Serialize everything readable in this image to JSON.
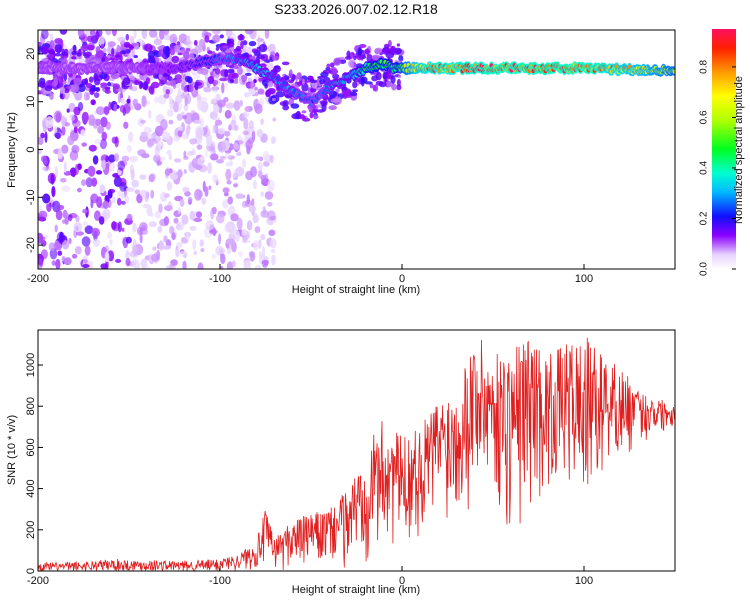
{
  "title": "S233.2026.007.02.12.R18",
  "chart_data": [
    {
      "type": "heatmap",
      "name": "spectrogram",
      "xlabel": "Height of straight line (km)",
      "ylabel": "Frequency (Hz)",
      "xlim": [
        -200,
        150
      ],
      "ylim": [
        -25,
        25
      ],
      "xticks": [
        -200,
        -100,
        0,
        100
      ],
      "yticks": [
        -20,
        -10,
        0,
        10,
        20
      ],
      "xtick_labels": [
        "-200",
        "-100",
        "0",
        "100"
      ],
      "ytick_labels": [
        "-20",
        "-10",
        "0",
        "10",
        "20"
      ],
      "ridge": {
        "description_points_x": [
          -200,
          -175,
          -150,
          -125,
          -100,
          -90,
          -80,
          -70,
          -60,
          -50,
          -40,
          -30,
          -20,
          -10,
          -5,
          0,
          10,
          20,
          50,
          100,
          150
        ],
        "description_points_y": [
          17,
          17,
          17,
          17,
          19,
          19,
          17,
          15,
          12,
          10,
          13,
          15,
          17,
          18,
          17,
          17,
          17,
          17,
          17,
          17,
          16.5
        ],
        "amplitude": [
          0.1,
          0.1,
          0.1,
          0.15,
          0.25,
          0.3,
          0.35,
          0.3,
          0.3,
          0.25,
          0.3,
          0.35,
          0.45,
          0.5,
          0.45,
          0.55,
          0.8,
          0.85,
          0.9,
          0.9,
          0.6
        ]
      },
      "colorbar": {
        "label": "Normalized spectral amplitude",
        "range": [
          0,
          0.95
        ],
        "ticks": [
          0,
          0.2,
          0.4,
          0.6,
          0.8
        ],
        "tick_labels": [
          "0.0",
          "0.2",
          "0.4",
          "0.6",
          "0.8"
        ]
      }
    },
    {
      "type": "line",
      "name": "snr",
      "xlabel": "Height of straight line (km)",
      "ylabel": "SNR (10 * v/v)",
      "xlim": [
        -200,
        150
      ],
      "ylim": [
        0,
        1170
      ],
      "xticks": [
        -200,
        -100,
        0,
        100
      ],
      "yticks": [
        0,
        200,
        400,
        600,
        800,
        1000
      ],
      "xtick_labels": [
        "-200",
        "-100",
        "0",
        "100"
      ],
      "ytick_labels": [
        "0",
        "200",
        "400",
        "600",
        "800",
        "1000"
      ],
      "color": "#e02020",
      "envelope": {
        "x": [
          -200,
          -180,
          -160,
          -140,
          -120,
          -100,
          -90,
          -80,
          -75,
          -70,
          -60,
          -50,
          -40,
          -30,
          -20,
          -10,
          0,
          10,
          20,
          30,
          40,
          50,
          60,
          70,
          80,
          90,
          100,
          110,
          120,
          130,
          140,
          150
        ],
        "upper": [
          40,
          45,
          60,
          55,
          50,
          60,
          80,
          150,
          300,
          160,
          250,
          280,
          300,
          400,
          600,
          750,
          650,
          700,
          850,
          900,
          1170,
          1050,
          1100,
          1150,
          1050,
          1100,
          1150,
          1050,
          1000,
          870,
          850,
          800
        ],
        "lower": [
          0,
          0,
          0,
          0,
          0,
          0,
          0,
          0,
          0,
          0,
          0,
          0,
          0,
          0,
          20,
          50,
          100,
          150,
          200,
          250,
          300,
          350,
          50,
          300,
          350,
          400,
          200,
          450,
          500,
          600,
          650,
          700
        ]
      }
    }
  ]
}
